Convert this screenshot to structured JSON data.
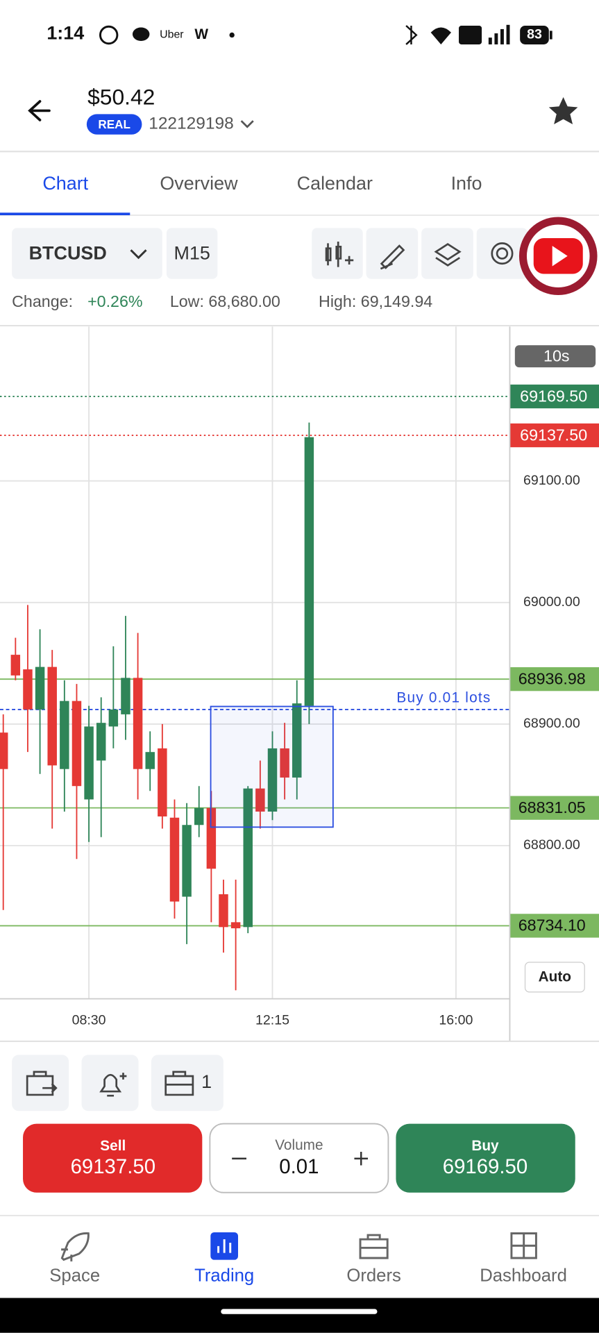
{
  "status_bar": {
    "time": "1:14",
    "battery": "83"
  },
  "header": {
    "balance": "$50.42",
    "account_type": "REAL",
    "account_id": "122129198"
  },
  "tabs": [
    "Chart",
    "Overview",
    "Calendar",
    "Info"
  ],
  "toolbar": {
    "symbol": "BTCUSD",
    "timeframe": "M15"
  },
  "stats": {
    "change_label": "Change:",
    "change": "+0.26%",
    "low": "Low: 68,680.00",
    "high": "High: 69,149.94"
  },
  "chart_data": {
    "type": "candlestick",
    "x": [
      "06:45",
      "07:00",
      "07:15",
      "07:30",
      "07:45",
      "08:00",
      "08:15",
      "08:30",
      "08:45",
      "09:00",
      "09:15",
      "09:30",
      "09:45",
      "10:00",
      "10:15",
      "10:30",
      "10:45",
      "11:00",
      "11:15",
      "11:30",
      "11:45",
      "12:00",
      "12:15",
      "12:30",
      "12:45",
      "13:00"
    ],
    "open": [
      68893,
      68957,
      68945,
      68912,
      68947,
      68863,
      68919,
      68838,
      68870,
      68898,
      68908,
      68938,
      68863,
      68880,
      68823,
      68758,
      68817,
      68831,
      68760,
      68737,
      68733,
      68847,
      68828,
      68880,
      68856,
      68915
    ],
    "high": [
      68908,
      68971,
      68998,
      68978,
      68961,
      68936,
      68933,
      68915,
      68922,
      68964,
      68989,
      68975,
      68894,
      68900,
      68838,
      68835,
      68849,
      68845,
      68772,
      68772,
      68849,
      68870,
      68894,
      68901,
      68936,
      69148
    ],
    "low": [
      68747,
      68936,
      68877,
      68859,
      68814,
      68828,
      68789,
      68803,
      68807,
      68880,
      68887,
      68838,
      68845,
      68814,
      68740,
      68719,
      68807,
      68737,
      68712,
      68681,
      68728,
      68814,
      68821,
      68838,
      68838,
      68900
    ],
    "close": [
      68863,
      68940,
      68912,
      68947,
      68866,
      68919,
      68849,
      68898,
      68901,
      68912,
      68938,
      68863,
      68877,
      68824,
      68754,
      68817,
      68831,
      68781,
      68733,
      68732,
      68847,
      68828,
      68880,
      68856,
      68917,
      69136
    ],
    "up_color": "#2f8558",
    "down_color": "#e53935",
    "ylim": [
      68674,
      69227
    ],
    "yticks": [
      {
        "value": 69100,
        "label": "69100.00"
      },
      {
        "value": 69000,
        "label": "69000.00"
      },
      {
        "value": 68900,
        "label": "68900.00"
      },
      {
        "value": 68800,
        "label": "68800.00"
      }
    ],
    "xlim": [
      "06:41",
      "17:06"
    ],
    "xticks": [
      "08:30",
      "12:15",
      "16:00"
    ],
    "grid": true,
    "ask": {
      "value": 69169.5,
      "label": "69169.50",
      "color": "#2f8558"
    },
    "bid": {
      "value": 69137.5,
      "label": "69137.50",
      "color": "#e53935"
    },
    "levels": [
      {
        "value": 68936.98,
        "label": "68936.98"
      },
      {
        "value": 68831.05,
        "label": "68831.05"
      },
      {
        "value": 68734.1,
        "label": "68734.10"
      }
    ],
    "level_color": "#7cb860",
    "order_price": 68912,
    "order_label": "Buy 0.01 lots",
    "timer": "10s",
    "scale_mode": "Auto"
  },
  "trade_bar": {
    "positions": "1",
    "sell_label": "Sell",
    "sell_price": "69137.50",
    "volume_label": "Volume",
    "volume": "0.01",
    "buy_label": "Buy",
    "buy_price": "69169.50"
  },
  "nav": [
    "Space",
    "Trading",
    "Orders",
    "Dashboard"
  ]
}
